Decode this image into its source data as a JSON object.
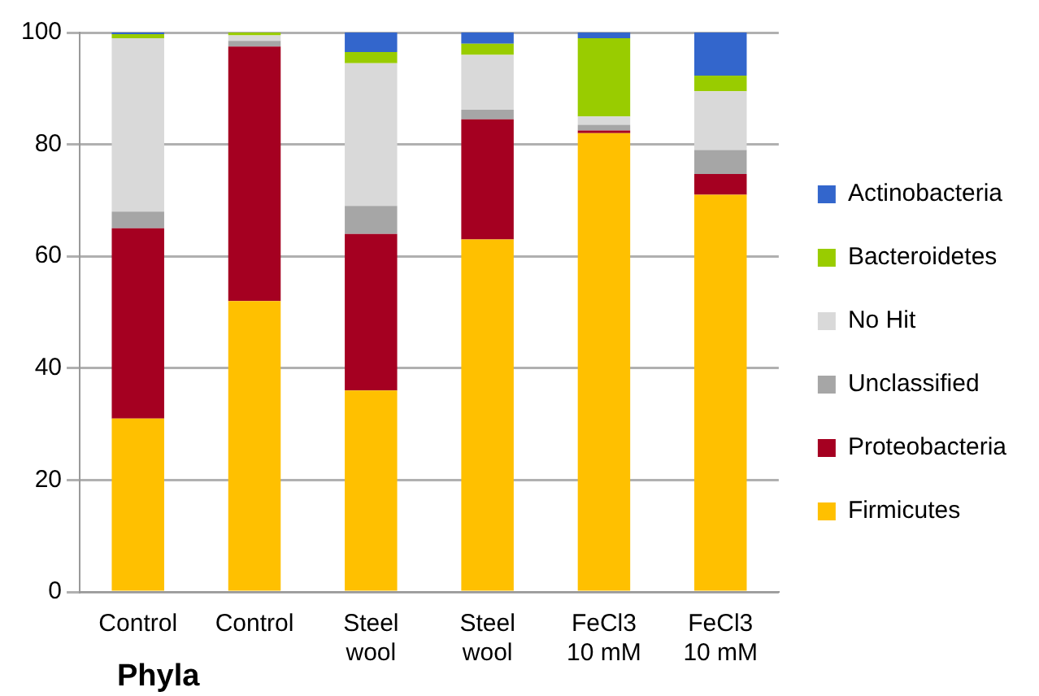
{
  "chart_data": {
    "type": "bar",
    "stacked": true,
    "categories": [
      "Control",
      "Control",
      "Steel\nwool",
      "Steel\nwool",
      "FeCl3\n10 mM",
      "FeCl3\n10 mM"
    ],
    "series": [
      {
        "name": "Firmicutes",
        "color": "#ffc000",
        "values": [
          31,
          52,
          36,
          63,
          82,
          71
        ]
      },
      {
        "name": "Proteobacteria",
        "color": "#a50021",
        "values": [
          34,
          45.5,
          28,
          21.5,
          0.5,
          3.7
        ]
      },
      {
        "name": "Unclassified",
        "color": "#a6a6a6",
        "values": [
          3,
          1,
          5,
          1.7,
          1,
          4.3
        ]
      },
      {
        "name": "No Hit",
        "color": "#d9d9d9",
        "values": [
          31,
          1,
          25.5,
          9.8,
          1.5,
          10.5
        ]
      },
      {
        "name": "Bacteroidetes",
        "color": "#99cc00",
        "values": [
          0.7,
          0.5,
          2,
          2,
          14,
          2.8
        ]
      },
      {
        "name": "Actinobacteria",
        "color": "#3366cc",
        "values": [
          0.3,
          0,
          3.5,
          2,
          1,
          7.7
        ]
      }
    ],
    "ylim": [
      0,
      100
    ],
    "yticks": [
      0,
      20,
      40,
      60,
      80,
      100
    ],
    "grid": "y",
    "legend": "right",
    "annotations": [
      "Phyla"
    ]
  }
}
